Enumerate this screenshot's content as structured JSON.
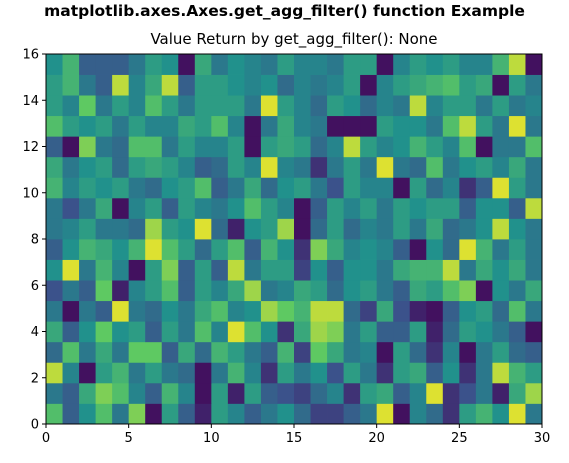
{
  "suptitle": "matplotlib.axes.Axes.get_agg_filter() function Example",
  "chart_data": {
    "type": "heatmap",
    "title": "Value Return by get_agg_filter(): None",
    "xlabel": "",
    "ylabel": "",
    "xlim": [
      0,
      30
    ],
    "ylim": [
      0,
      16
    ],
    "x_ticks": [
      0,
      5,
      10,
      15,
      20,
      25,
      30
    ],
    "y_ticks": [
      0,
      2,
      4,
      6,
      8,
      10,
      12,
      14,
      16
    ],
    "colormap": "viridis",
    "colormap_stops": [
      "#440154",
      "#3b528b",
      "#21918c",
      "#5ec962",
      "#fde725"
    ],
    "grid": false,
    "value_range": [
      0,
      1
    ],
    "values": [
      [
        0.7,
        0.3,
        0.5,
        0.7,
        0.4,
        0.8,
        0.05,
        0.55,
        0.3,
        0.1,
        0.55,
        0.45,
        0.3,
        0.4,
        0.5,
        0.35,
        0.2,
        0.2,
        0.3,
        0.4,
        0.95,
        0.05,
        0.45,
        0.35,
        0.15,
        0.55,
        0.65,
        0.5,
        0.95,
        0.4
      ],
      [
        0.4,
        0.3,
        0.6,
        0.8,
        0.7,
        0.45,
        0.3,
        0.65,
        0.45,
        0.05,
        0.55,
        0.1,
        0.55,
        0.3,
        0.25,
        0.2,
        0.35,
        0.45,
        0.15,
        0.55,
        0.6,
        0.3,
        0.45,
        0.95,
        0.15,
        0.25,
        0.4,
        0.1,
        0.6,
        0.85
      ],
      [
        0.9,
        0.45,
        0.05,
        0.55,
        0.65,
        0.4,
        0.55,
        0.4,
        0.35,
        0.05,
        0.4,
        0.65,
        0.45,
        0.15,
        0.55,
        0.4,
        0.5,
        0.25,
        0.55,
        0.4,
        0.15,
        0.55,
        0.6,
        0.3,
        0.5,
        0.15,
        0.4,
        0.9,
        0.65,
        0.55
      ],
      [
        0.35,
        0.7,
        0.4,
        0.6,
        0.4,
        0.75,
        0.75,
        0.3,
        0.6,
        0.35,
        0.65,
        0.55,
        0.4,
        0.3,
        0.65,
        0.2,
        0.75,
        0.6,
        0.4,
        0.45,
        0.05,
        0.55,
        0.35,
        0.15,
        0.45,
        0.05,
        0.4,
        0.55,
        0.35,
        0.3
      ],
      [
        0.6,
        0.3,
        0.5,
        0.75,
        0.5,
        0.55,
        0.3,
        0.55,
        0.4,
        0.7,
        0.45,
        0.95,
        0.7,
        0.5,
        0.15,
        0.6,
        0.85,
        0.8,
        0.4,
        0.55,
        0.3,
        0.3,
        0.55,
        0.1,
        0.35,
        0.55,
        0.5,
        0.4,
        0.3,
        0.05
      ],
      [
        0.4,
        0.05,
        0.4,
        0.3,
        0.95,
        0.4,
        0.35,
        0.5,
        0.4,
        0.6,
        0.7,
        0.45,
        0.5,
        0.85,
        0.75,
        0.65,
        0.9,
        0.9,
        0.35,
        0.2,
        0.6,
        0.25,
        0.1,
        0.05,
        0.3,
        0.5,
        0.55,
        0.35,
        0.7,
        0.4
      ],
      [
        0.25,
        0.4,
        0.3,
        0.75,
        0.1,
        0.45,
        0.55,
        0.7,
        0.3,
        0.55,
        0.45,
        0.6,
        0.85,
        0.4,
        0.45,
        0.6,
        0.55,
        0.35,
        0.5,
        0.55,
        0.4,
        0.3,
        0.6,
        0.55,
        0.7,
        0.8,
        0.05,
        0.5,
        0.4,
        0.6
      ],
      [
        0.5,
        0.95,
        0.4,
        0.65,
        0.45,
        0.05,
        0.55,
        0.8,
        0.3,
        0.55,
        0.3,
        0.9,
        0.4,
        0.55,
        0.55,
        0.2,
        0.5,
        0.3,
        0.5,
        0.5,
        0.4,
        0.6,
        0.65,
        0.65,
        0.9,
        0.4,
        0.6,
        0.5,
        0.6,
        0.4
      ],
      [
        0.3,
        0.5,
        0.65,
        0.6,
        0.5,
        0.65,
        0.95,
        0.7,
        0.55,
        0.35,
        0.55,
        0.7,
        0.3,
        0.65,
        0.5,
        0.15,
        0.8,
        0.6,
        0.45,
        0.5,
        0.45,
        0.3,
        0.05,
        0.5,
        0.35,
        0.95,
        0.65,
        0.4,
        0.55,
        0.4
      ],
      [
        0.4,
        0.45,
        0.55,
        0.4,
        0.4,
        0.35,
        0.85,
        0.55,
        0.5,
        0.95,
        0.35,
        0.1,
        0.5,
        0.55,
        0.85,
        0.05,
        0.35,
        0.55,
        0.35,
        0.45,
        0.4,
        0.55,
        0.4,
        0.6,
        0.35,
        0.4,
        0.5,
        0.9,
        0.5,
        0.4
      ],
      [
        0.4,
        0.25,
        0.4,
        0.6,
        0.05,
        0.45,
        0.55,
        0.3,
        0.55,
        0.45,
        0.4,
        0.5,
        0.7,
        0.55,
        0.45,
        0.05,
        0.3,
        0.55,
        0.45,
        0.55,
        0.4,
        0.55,
        0.5,
        0.55,
        0.55,
        0.3,
        0.5,
        0.5,
        0.3,
        0.9
      ],
      [
        0.65,
        0.45,
        0.55,
        0.5,
        0.55,
        0.4,
        0.35,
        0.5,
        0.55,
        0.7,
        0.3,
        0.4,
        0.6,
        0.35,
        0.5,
        0.55,
        0.4,
        0.25,
        0.55,
        0.45,
        0.45,
        0.05,
        0.55,
        0.35,
        0.45,
        0.15,
        0.3,
        0.95,
        0.55,
        0.4
      ],
      [
        0.6,
        0.4,
        0.5,
        0.55,
        0.35,
        0.55,
        0.6,
        0.55,
        0.45,
        0.3,
        0.35,
        0.55,
        0.45,
        0.95,
        0.45,
        0.4,
        0.15,
        0.4,
        0.55,
        0.4,
        0.95,
        0.4,
        0.35,
        0.7,
        0.4,
        0.5,
        0.55,
        0.45,
        0.6,
        0.4
      ],
      [
        0.3,
        0.05,
        0.8,
        0.4,
        0.35,
        0.7,
        0.7,
        0.4,
        0.55,
        0.45,
        0.45,
        0.55,
        0.05,
        0.55,
        0.6,
        0.55,
        0.35,
        0.45,
        0.9,
        0.55,
        0.45,
        0.5,
        0.65,
        0.55,
        0.45,
        0.7,
        0.05,
        0.4,
        0.4,
        0.7
      ],
      [
        0.7,
        0.55,
        0.5,
        0.55,
        0.4,
        0.55,
        0.45,
        0.45,
        0.6,
        0.55,
        0.7,
        0.45,
        0.05,
        0.4,
        0.6,
        0.45,
        0.4,
        0.05,
        0.05,
        0.05,
        0.55,
        0.5,
        0.5,
        0.4,
        0.7,
        0.9,
        0.55,
        0.4,
        0.95,
        0.4
      ],
      [
        0.55,
        0.45,
        0.75,
        0.4,
        0.55,
        0.45,
        0.7,
        0.55,
        0.4,
        0.55,
        0.55,
        0.55,
        0.4,
        0.95,
        0.55,
        0.45,
        0.35,
        0.55,
        0.5,
        0.35,
        0.45,
        0.4,
        0.9,
        0.45,
        0.55,
        0.55,
        0.4,
        0.55,
        0.4,
        0.45
      ],
      [
        0.55,
        0.65,
        0.4,
        0.3,
        0.9,
        0.45,
        0.6,
        0.9,
        0.3,
        0.55,
        0.55,
        0.5,
        0.45,
        0.5,
        0.35,
        0.45,
        0.4,
        0.45,
        0.55,
        0.05,
        0.45,
        0.55,
        0.6,
        0.65,
        0.7,
        0.55,
        0.6,
        0.05,
        0.55,
        0.4
      ],
      [
        0.5,
        0.65,
        0.3,
        0.3,
        0.3,
        0.4,
        0.55,
        0.5,
        0.05,
        0.6,
        0.4,
        0.5,
        0.45,
        0.4,
        0.55,
        0.45,
        0.45,
        0.4,
        0.55,
        0.55,
        0.05,
        0.45,
        0.55,
        0.5,
        0.55,
        0.45,
        0.45,
        0.65,
        0.9,
        0.05
      ]
    ]
  }
}
